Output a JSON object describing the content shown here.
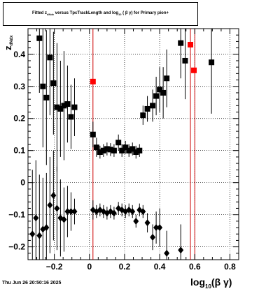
{
  "title": {
    "part1": "Fitted  z",
    "part1_sub": "dNdx",
    "part2": "  versus TpcTrackLength and log",
    "part2_sub": "10",
    "part3": " ( β γ) for Primary pion+"
  },
  "datestamp": "Thu Jun 26 20:50:16 2025",
  "chart_data": {
    "type": "scatter",
    "title": "Fitted z_dNdx versus TpcTrackLength and log10 (β γ) for Primary pion+",
    "xlabel": "log10(β γ)",
    "xlabel_main": "log",
    "xlabel_sub": "10",
    "xlabel_rest": "(β γ)",
    "ylabel": "z",
    "ylabel_sub": "dNdx",
    "xlim": [
      -0.35,
      0.85
    ],
    "ylim": [
      -0.24,
      0.48
    ],
    "xticks": [
      -0.2,
      0,
      0.2,
      0.4,
      0.6,
      0.8
    ],
    "xtick_labels": [
      "−0.2",
      "0",
      "0.2",
      "0.4",
      "0.6",
      "0.8"
    ],
    "yticks": [
      -0.2,
      -0.1,
      0,
      0.1,
      0.2,
      0.3,
      0.4
    ],
    "ytick_labels": [
      "−0.2",
      "−0.1",
      "0",
      "0.1",
      "0.2",
      "0.3",
      "0.4"
    ],
    "grid": true,
    "vertical_lines": [
      0.02,
      0.575,
      0.6
    ],
    "colors": {
      "marker": "#000000",
      "highlight": "#ff0000",
      "vline": "#cc0000"
    },
    "series": [
      {
        "marker": "square",
        "points": [
          {
            "x": -0.285,
            "y": 0.45,
            "err": 0.17
          },
          {
            "x": -0.265,
            "y": 0.3,
            "err": 0.19
          },
          {
            "x": -0.245,
            "y": 0.265,
            "err": 0.21
          },
          {
            "x": -0.225,
            "y": 0.39,
            "err": 0.18
          },
          {
            "x": -0.205,
            "y": 0.31,
            "err": 0.16
          },
          {
            "x": -0.185,
            "y": 0.235,
            "err": 0.2
          },
          {
            "x": -0.165,
            "y": 0.23,
            "err": 0.15
          },
          {
            "x": -0.145,
            "y": 0.24,
            "err": 0.17
          },
          {
            "x": -0.125,
            "y": 0.245,
            "err": 0.12
          },
          {
            "x": -0.105,
            "y": 0.205,
            "err": 0.1
          },
          {
            "x": -0.085,
            "y": 0.235,
            "err": 0.09
          },
          {
            "x": 0.02,
            "y": 0.15,
            "err": 0.04
          },
          {
            "x": 0.04,
            "y": 0.11,
            "err": 0.03
          },
          {
            "x": 0.06,
            "y": 0.095,
            "err": 0.02
          },
          {
            "x": 0.08,
            "y": 0.1,
            "err": 0.02
          },
          {
            "x": 0.1,
            "y": 0.105,
            "err": 0.02
          },
          {
            "x": 0.12,
            "y": 0.103,
            "err": 0.02
          },
          {
            "x": 0.14,
            "y": 0.1,
            "err": 0.02
          },
          {
            "x": 0.165,
            "y": 0.125,
            "err": 0.025
          },
          {
            "x": 0.185,
            "y": 0.1,
            "err": 0.02
          },
          {
            "x": 0.205,
            "y": 0.11,
            "err": 0.02
          },
          {
            "x": 0.225,
            "y": 0.1,
            "err": 0.02
          },
          {
            "x": 0.245,
            "y": 0.105,
            "err": 0.02
          },
          {
            "x": 0.265,
            "y": 0.095,
            "err": 0.02
          },
          {
            "x": 0.285,
            "y": 0.1,
            "err": 0.02
          },
          {
            "x": 0.305,
            "y": 0.21,
            "err": 0.03
          },
          {
            "x": 0.33,
            "y": 0.23,
            "err": 0.04
          },
          {
            "x": 0.36,
            "y": 0.24,
            "err": 0.05
          },
          {
            "x": 0.38,
            "y": 0.27,
            "err": 0.06
          },
          {
            "x": 0.4,
            "y": 0.29,
            "err": 0.07
          },
          {
            "x": 0.42,
            "y": 0.28,
            "err": 0.08
          },
          {
            "x": 0.44,
            "y": 0.325,
            "err": 0.09
          },
          {
            "x": 0.52,
            "y": 0.435,
            "err": 0.11
          },
          {
            "x": 0.545,
            "y": 0.38,
            "err": 0.12
          },
          {
            "x": 0.695,
            "y": 0.375,
            "err": 0.16
          }
        ]
      },
      {
        "marker": "square",
        "color": "red",
        "points": [
          {
            "x": 0.02,
            "y": 0.315
          },
          {
            "x": 0.575,
            "y": 0.43
          },
          {
            "x": 0.595,
            "y": 0.35
          }
        ]
      },
      {
        "marker": "diamond",
        "points": [
          {
            "x": -0.325,
            "y": -0.16,
            "err": 0.2
          },
          {
            "x": -0.305,
            "y": -0.11,
            "err": 0.18
          },
          {
            "x": -0.285,
            "y": -0.165,
            "err": 0.19
          },
          {
            "x": -0.265,
            "y": -0.145,
            "err": 0.16
          },
          {
            "x": -0.245,
            "y": -0.14,
            "err": 0.17
          },
          {
            "x": -0.225,
            "y": -0.07,
            "err": 0.15
          },
          {
            "x": -0.205,
            "y": -0.04,
            "err": 0.14
          },
          {
            "x": -0.185,
            "y": -0.08,
            "err": 0.13
          },
          {
            "x": -0.165,
            "y": -0.11,
            "err": 0.12
          },
          {
            "x": -0.145,
            "y": -0.115,
            "err": 0.1
          },
          {
            "x": -0.125,
            "y": -0.09,
            "err": 0.08
          },
          {
            "x": -0.105,
            "y": -0.09,
            "err": 0.06
          },
          {
            "x": -0.085,
            "y": -0.09,
            "err": 0.04
          },
          {
            "x": 0.02,
            "y": -0.085,
            "err": 0.03
          },
          {
            "x": 0.04,
            "y": -0.09,
            "err": 0.02
          },
          {
            "x": 0.06,
            "y": -0.085,
            "err": 0.02
          },
          {
            "x": 0.08,
            "y": -0.09,
            "err": 0.02
          },
          {
            "x": 0.1,
            "y": -0.095,
            "err": 0.02
          },
          {
            "x": 0.12,
            "y": -0.09,
            "err": 0.02
          },
          {
            "x": 0.14,
            "y": -0.095,
            "err": 0.02
          },
          {
            "x": 0.165,
            "y": -0.08,
            "err": 0.02
          },
          {
            "x": 0.185,
            "y": -0.085,
            "err": 0.02
          },
          {
            "x": 0.205,
            "y": -0.09,
            "err": 0.02
          },
          {
            "x": 0.225,
            "y": -0.085,
            "err": 0.02
          },
          {
            "x": 0.245,
            "y": -0.09,
            "err": 0.02
          },
          {
            "x": 0.265,
            "y": -0.12,
            "err": 0.02
          },
          {
            "x": 0.285,
            "y": -0.085,
            "err": 0.02
          },
          {
            "x": 0.305,
            "y": -0.09,
            "err": 0.02
          },
          {
            "x": 0.33,
            "y": -0.125,
            "err": 0.03
          },
          {
            "x": 0.36,
            "y": -0.17,
            "err": 0.04
          },
          {
            "x": 0.38,
            "y": -0.14,
            "err": 0.05
          },
          {
            "x": 0.4,
            "y": -0.14,
            "err": 0.06
          },
          {
            "x": 0.44,
            "y": -0.22,
            "err": 0.07
          },
          {
            "x": 0.52,
            "y": -0.21,
            "err": 0.08
          }
        ]
      }
    ]
  }
}
